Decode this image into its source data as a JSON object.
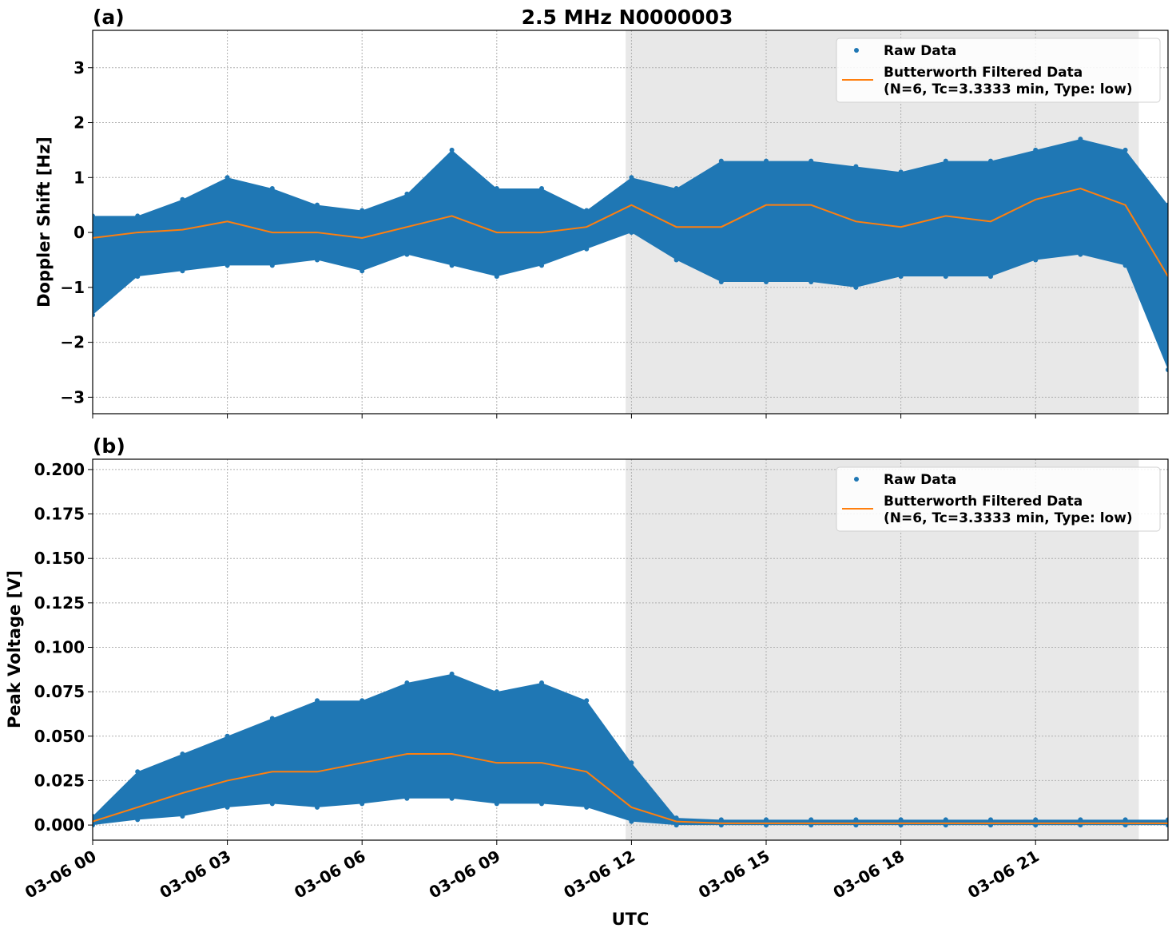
{
  "title": "2.5 MHz N0000003",
  "colors": {
    "raw": "#1f77b4",
    "filtered": "#ff7f0e",
    "shade": "#e8e8e8"
  },
  "chart_data": [
    {
      "type": "scatter",
      "panel_label": "(a)",
      "xlabel": "",
      "ylabel": "Doppler Shift [Hz]",
      "xlim": [
        0,
        23.95
      ],
      "ylim": [
        -3.3,
        3.68
      ],
      "grid": true,
      "legend_placement": "top-right",
      "shaded_region_hours": [
        11.87,
        23.3
      ],
      "yticks": [
        "−3",
        "−2",
        "−1",
        "0",
        "1",
        "2",
        "3"
      ],
      "ytick_values": [
        -3,
        -2,
        -1,
        0,
        1,
        2,
        3
      ],
      "legend": [
        "Raw Data",
        "Butterworth Filtered Data",
        "(N=6, Tc=3.3333 min, Type: low)"
      ],
      "x": [
        0,
        1,
        2,
        3,
        4,
        5,
        6,
        7,
        8,
        9,
        10,
        11,
        12,
        13,
        14,
        15,
        16,
        17,
        18,
        19,
        20,
        21,
        22,
        23,
        23.95
      ],
      "series": [
        {
          "name": "Butterworth Filtered Data",
          "values": [
            -0.1,
            0,
            0.05,
            0.2,
            0,
            0,
            -0.1,
            0.1,
            0.3,
            0,
            0,
            0.1,
            0.5,
            0.1,
            0.1,
            0.5,
            0.5,
            0.2,
            0.1,
            0.3,
            0.2,
            0.6,
            0.8,
            0.5,
            -0.8
          ]
        },
        {
          "values": [
            -1.5,
            -0.8,
            -0.7,
            -0.6,
            -0.6,
            -0.5,
            -0.7,
            -0.4,
            -0.6,
            -0.8,
            -0.6,
            -0.3,
            0,
            -0.5,
            -0.9,
            -0.9,
            -0.9,
            -1.0,
            -0.8,
            -0.8,
            -0.8,
            -0.5,
            -0.4,
            -0.6,
            -2.5
          ]
        },
        {
          "values": [
            0.3,
            0.3,
            0.6,
            1.0,
            0.8,
            0.5,
            0.4,
            0.7,
            1.5,
            0.8,
            0.8,
            0.4,
            1.0,
            0.8,
            1.3,
            1.3,
            1.3,
            1.2,
            1.1,
            1.3,
            1.3,
            1.5,
            1.7,
            1.5,
            0.5
          ]
        }
      ]
    },
    {
      "type": "scatter",
      "panel_label": "(b)",
      "xlabel": "UTC",
      "ylabel": "Peak Voltage [V]",
      "xlim": [
        0,
        23.95
      ],
      "ylim": [
        -0.0085,
        0.2058
      ],
      "grid": true,
      "legend_placement": "top-right",
      "shaded_region_hours": [
        11.87,
        23.3
      ],
      "yticks": [
        "0.000",
        "0.025",
        "0.050",
        "0.075",
        "0.100",
        "0.125",
        "0.150",
        "0.175",
        "0.200"
      ],
      "ytick_values": [
        0,
        0.025,
        0.05,
        0.075,
        0.1,
        0.125,
        0.15,
        0.175,
        0.2
      ],
      "xticks": [
        "03-06 00",
        "03-06 03",
        "03-06 06",
        "03-06 09",
        "03-06 12",
        "03-06 15",
        "03-06 18",
        "03-06 21"
      ],
      "xtick_values": [
        0,
        3,
        6,
        9,
        12,
        15,
        18,
        21
      ],
      "legend": [
        "Raw Data",
        "Butterworth Filtered Data",
        "(N=6, Tc=3.3333 min, Type: low)"
      ],
      "x": [
        0,
        1,
        2,
        3,
        4,
        5,
        6,
        7,
        8,
        9,
        10,
        11,
        12,
        13,
        14,
        15,
        16,
        17,
        18,
        19,
        20,
        21,
        22,
        23,
        23.95
      ],
      "series": [
        {
          "name": "Butterworth Filtered Data",
          "values": [
            0.002,
            0.01,
            0.018,
            0.025,
            0.03,
            0.03,
            0.035,
            0.04,
            0.04,
            0.035,
            0.035,
            0.03,
            0.01,
            0.002,
            0.001,
            0.001,
            0.001,
            0.001,
            0.001,
            0.001,
            0.001,
            0.001,
            0.001,
            0.001,
            0.001
          ]
        },
        {
          "values": [
            0,
            0.003,
            0.005,
            0.01,
            0.012,
            0.01,
            0.012,
            0.015,
            0.015,
            0.012,
            0.012,
            0.01,
            0.002,
            0,
            0,
            0,
            0,
            0,
            0,
            0,
            0,
            0,
            0,
            0,
            0
          ]
        },
        {
          "values": [
            0.005,
            0.03,
            0.04,
            0.05,
            0.06,
            0.07,
            0.07,
            0.08,
            0.085,
            0.075,
            0.08,
            0.07,
            0.035,
            0.004,
            0.003,
            0.003,
            0.003,
            0.003,
            0.003,
            0.003,
            0.003,
            0.003,
            0.003,
            0.003,
            0.003
          ]
        }
      ]
    }
  ]
}
